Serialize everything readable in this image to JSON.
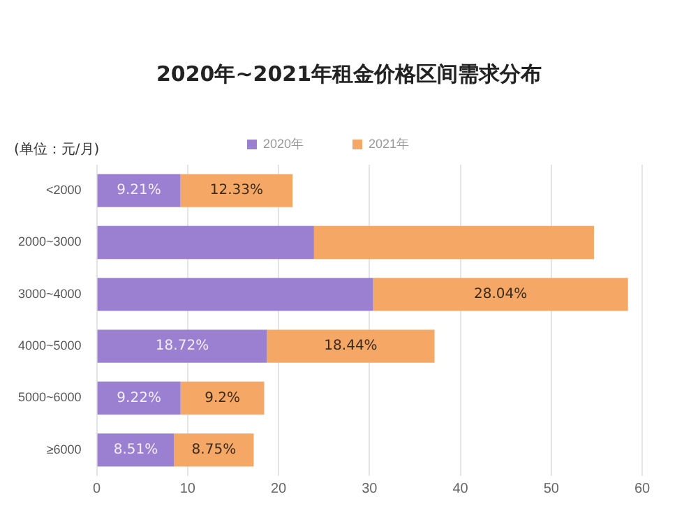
{
  "chart_data": {
    "type": "bar",
    "orientation": "horizontal",
    "stacked": true,
    "title": "2020年~2021年租金价格区间需求分布",
    "annotations": [
      "(单位：元/月)"
    ],
    "categories": [
      "<2000",
      "2000~3000",
      "3000~4000",
      "4000~5000",
      "5000~6000",
      "≥6000"
    ],
    "series": [
      {
        "name": "2020年",
        "color": "#9b7fd0",
        "values": [
          9.21,
          23.9,
          30.4,
          18.72,
          9.22,
          8.51
        ],
        "value_labels": [
          "9.21%",
          null,
          null,
          "18.72%",
          "9.22%",
          "8.51%"
        ]
      },
      {
        "name": "2021年",
        "color": "#f5a765",
        "values": [
          12.33,
          30.8,
          28.04,
          18.44,
          9.2,
          8.75
        ],
        "value_labels": [
          "12.33%",
          null,
          "28.04%",
          "18.44%",
          "9.2%",
          "8.75%"
        ]
      }
    ],
    "xlim": [
      0,
      60
    ],
    "xticks": [
      0,
      10,
      20,
      30,
      40,
      50,
      60
    ],
    "grid": "x",
    "legend": "top"
  }
}
